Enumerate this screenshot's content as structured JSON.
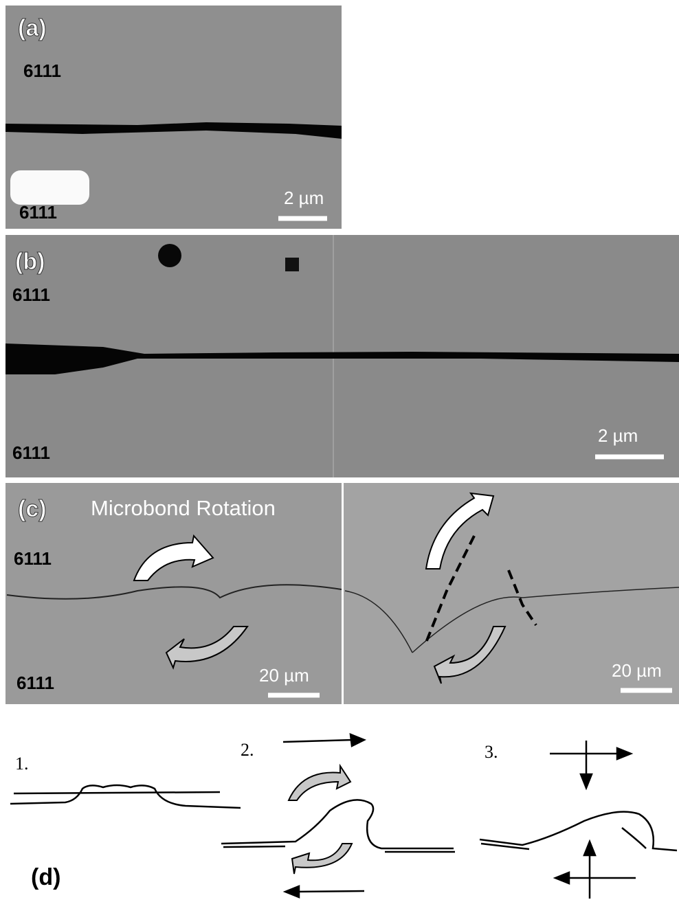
{
  "panels": {
    "a": {
      "label": "(a)",
      "top_alloy": "6111",
      "bottom_alloy": "6111",
      "scale_bar": "2 µm"
    },
    "b": {
      "label": "(b)",
      "top_alloy": "6111",
      "bottom_alloy": "6111",
      "scale_bar": "2 µm"
    },
    "c": {
      "label": "(c)",
      "title": "Microbond Rotation",
      "top_alloy": "6111",
      "bottom_alloy": "6111",
      "scale_bar_left": "20 µm",
      "scale_bar_right": "20 µm"
    },
    "d": {
      "label": "(d)",
      "steps": [
        "1.",
        "2.",
        "3."
      ]
    }
  }
}
